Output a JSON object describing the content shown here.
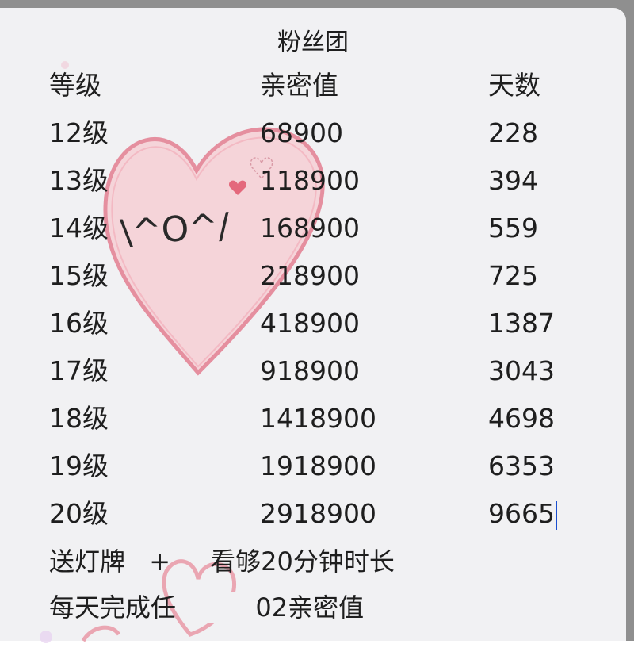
{
  "title": "粉丝团",
  "headers": [
    "等级",
    "亲密值",
    "天数"
  ],
  "rows": [
    {
      "level": "12级",
      "intimacy": "68900",
      "days": "228"
    },
    {
      "level": "13级",
      "intimacy": "118900",
      "days": "394"
    },
    {
      "level": "14级",
      "intimacy": "168900",
      "days": "559"
    },
    {
      "level": "15级",
      "intimacy": "218900",
      "days": "725"
    },
    {
      "level": "16级",
      "intimacy": "418900",
      "days": "1387"
    },
    {
      "level": "17级",
      "intimacy": "918900",
      "days": "3043"
    },
    {
      "level": "18级",
      "intimacy": "1418900",
      "days": "4698"
    },
    {
      "level": "19级",
      "intimacy": "1918900",
      "days": "6353"
    },
    {
      "level": "20级",
      "intimacy": "2918900",
      "days": "9665"
    }
  ],
  "notes": {
    "line1_a": "送灯牌",
    "line1_plus": "+",
    "line1_b": "看够20分钟时长",
    "line2_a": "每天完成任",
    "line2_b": "02亲密值"
  },
  "sticker": {
    "emoticon": "\\^O^/",
    "icon": "heart-icon",
    "color": "#e79aa8"
  }
}
